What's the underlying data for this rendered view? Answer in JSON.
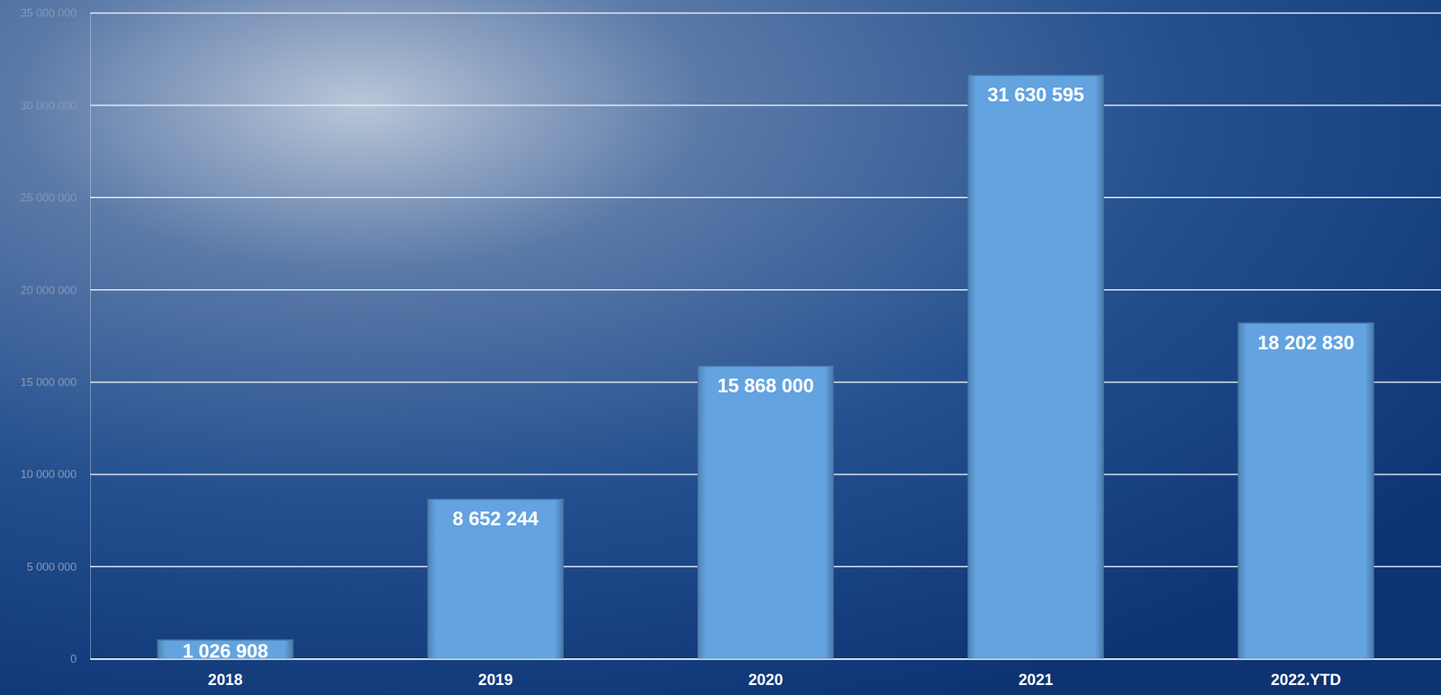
{
  "chart_data": {
    "type": "bar",
    "categories": [
      "2018",
      "2019",
      "2020",
      "2021",
      "2022.YTD"
    ],
    "values": [
      1026908,
      8652244,
      15868000,
      31630595,
      18202830
    ],
    "value_labels": [
      "1 026 908",
      "8 652 244",
      "15 868 000",
      "31 630 595",
      "18 202 830"
    ],
    "color": "#62a3e0",
    "ylim": [
      0,
      35000000
    ],
    "yticks": [
      0,
      {
        "value": 5000000,
        "label": "5 000 000"
      },
      {
        "value": 10000000,
        "label": "10 000 000"
      },
      {
        "value": 15000000,
        "label": "15 000 000"
      },
      {
        "value": 20000000,
        "label": "20 000 000"
      },
      {
        "value": 25000000,
        "label": "25 000 000"
      },
      {
        "value": 30000000,
        "label": "30 000 000"
      },
      {
        "value": 35000000,
        "label": "35 000 000"
      }
    ],
    "grid": true,
    "data_labels": true
  }
}
